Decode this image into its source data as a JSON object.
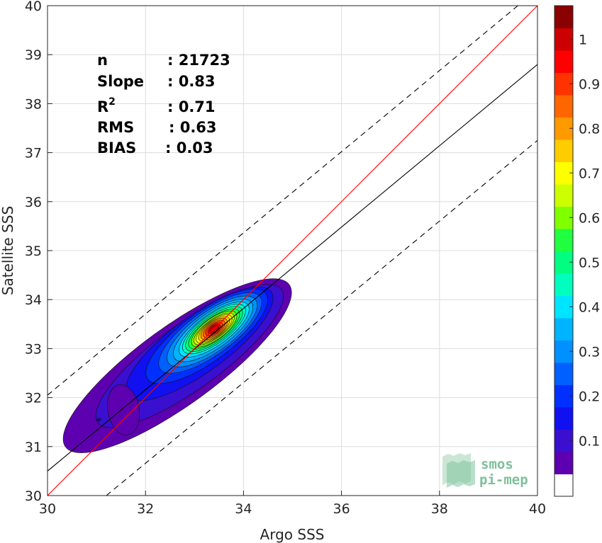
{
  "chart_data": {
    "type": "contour",
    "xlabel": "Argo SSS",
    "ylabel": "Satellite SSS",
    "xlim": [
      30,
      40
    ],
    "ylim": [
      30,
      40
    ],
    "xticks": [
      "30",
      "32",
      "34",
      "36",
      "38",
      "40"
    ],
    "yticks": [
      "30",
      "31",
      "32",
      "33",
      "34",
      "35",
      "36",
      "37",
      "38",
      "39",
      "40"
    ],
    "grid": true,
    "stats": [
      {
        "label": "n",
        "value": ": 21723"
      },
      {
        "label": "Slope",
        "value": ": 0.83"
      },
      {
        "label": "R",
        "sup": "2",
        "value": ": 0.71"
      },
      {
        "label": "RMS",
        "value": ": 0.63"
      },
      {
        "label": "BIAS",
        "value": ": 0.03"
      }
    ],
    "lines": {
      "one_to_one": {
        "color": "#ff0000",
        "points": [
          [
            30,
            30
          ],
          [
            40,
            40
          ]
        ]
      },
      "regression": {
        "color": "#000000",
        "slope": 0.83,
        "points": [
          [
            30,
            30.5
          ],
          [
            40,
            38.8
          ]
        ]
      },
      "upper_bound": {
        "dashed": true,
        "points": [
          [
            30,
            32.05
          ],
          [
            39.6,
            40
          ]
        ]
      },
      "lower_bound": {
        "dashed": true,
        "points": [
          [
            31.2,
            30
          ],
          [
            40,
            37.25
          ]
        ]
      }
    },
    "density_peak": {
      "x": 33.4,
      "y": 33.4
    },
    "contour_levels": [
      0.05,
      0.1,
      0.15,
      0.2,
      0.25,
      0.3,
      0.35,
      0.4,
      0.45,
      0.5,
      0.55,
      0.6,
      0.65,
      0.7,
      0.75,
      0.8,
      0.85,
      0.9,
      0.95,
      1.0
    ],
    "colorbar": {
      "range": [
        0,
        1
      ],
      "ticks": [
        "0.1",
        "0.2",
        "0.3",
        "0.4",
        "0.5",
        "0.6",
        "0.7",
        "0.8",
        "0.9",
        "1"
      ],
      "colors": [
        "#ffffff",
        "#5d00b0",
        "#3a0fcf",
        "#1010f0",
        "#0030ff",
        "#0060ff",
        "#0090ff",
        "#00b4ff",
        "#00e5ff",
        "#00ffbf",
        "#00ff80",
        "#20ff40",
        "#80ff00",
        "#ccff00",
        "#ffff00",
        "#ffcc00",
        "#ff9900",
        "#ff6600",
        "#ff3300",
        "#ff0000",
        "#cc0000",
        "#8b0000"
      ]
    }
  },
  "logo": {
    "line1": "smos",
    "line2": "pi-mep"
  }
}
